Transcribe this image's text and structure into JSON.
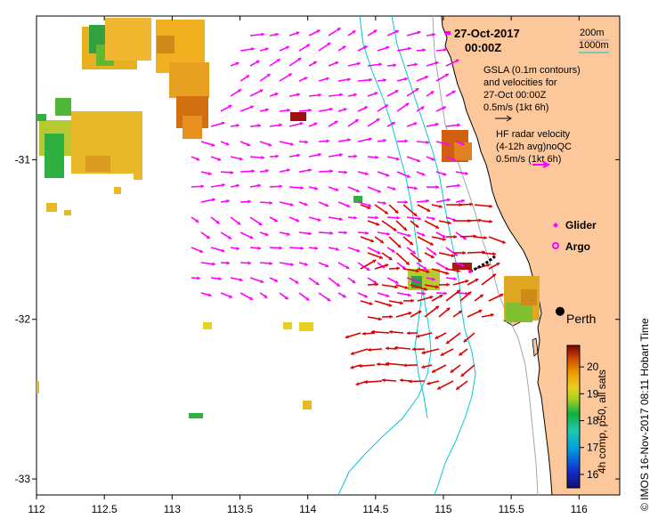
{
  "header": {
    "date_line1": "27-Oct-2017",
    "date_line2": "00:00Z"
  },
  "depth_legend": {
    "label_200": "200m",
    "label_1000": "1000m",
    "color_200": "#9aa7b5",
    "color_1000": "#00c8d8"
  },
  "gsla_legend": {
    "line1": "GSLA (0.1m contours)",
    "line2": "and velocities for",
    "line3": "27-Oct 00:00Z",
    "line4": "0.5m/s (1kt 6h)"
  },
  "hf_legend": {
    "line1": "HF radar velocity",
    "line2": "(4-12h avg)noQC",
    "line3": "0.5m/s (1kt 6h)"
  },
  "markers": {
    "glider_label": "Glider",
    "argo_label": "Argo",
    "glider_color": "#ff00ff",
    "argo_color": "#ff00ff"
  },
  "city": {
    "name": "Perth",
    "lon": 115.86,
    "lat": -31.95
  },
  "axes": {
    "x_ticks": [
      "112",
      "112.5",
      "113",
      "113.5",
      "114",
      "114.5",
      "115",
      "115.5",
      "116"
    ],
    "x_values": [
      112,
      112.5,
      113,
      113.5,
      114,
      114.5,
      115,
      115.5,
      116
    ],
    "y_ticks": [
      "-31",
      "-32",
      "-33"
    ],
    "y_values": [
      -31,
      -32,
      -33
    ],
    "lon_range": [
      112,
      116.3
    ],
    "lat_range": [
      -33.1,
      -30.1
    ]
  },
  "colorbar": {
    "title": "4h comp, p50, all sats",
    "tick_labels": [
      "20",
      "19",
      "18",
      "17",
      "16"
    ],
    "tick_values": [
      20,
      19,
      18,
      17,
      16
    ],
    "range": [
      15.5,
      20.8
    ]
  },
  "side_caption": "©  IMOS 16-Nov-2017 08:11 Hobart Time",
  "colors": {
    "land": "#fcc79a",
    "gsla_arrow": "#ff00ff",
    "hf_arrow": "#dd0000"
  }
}
